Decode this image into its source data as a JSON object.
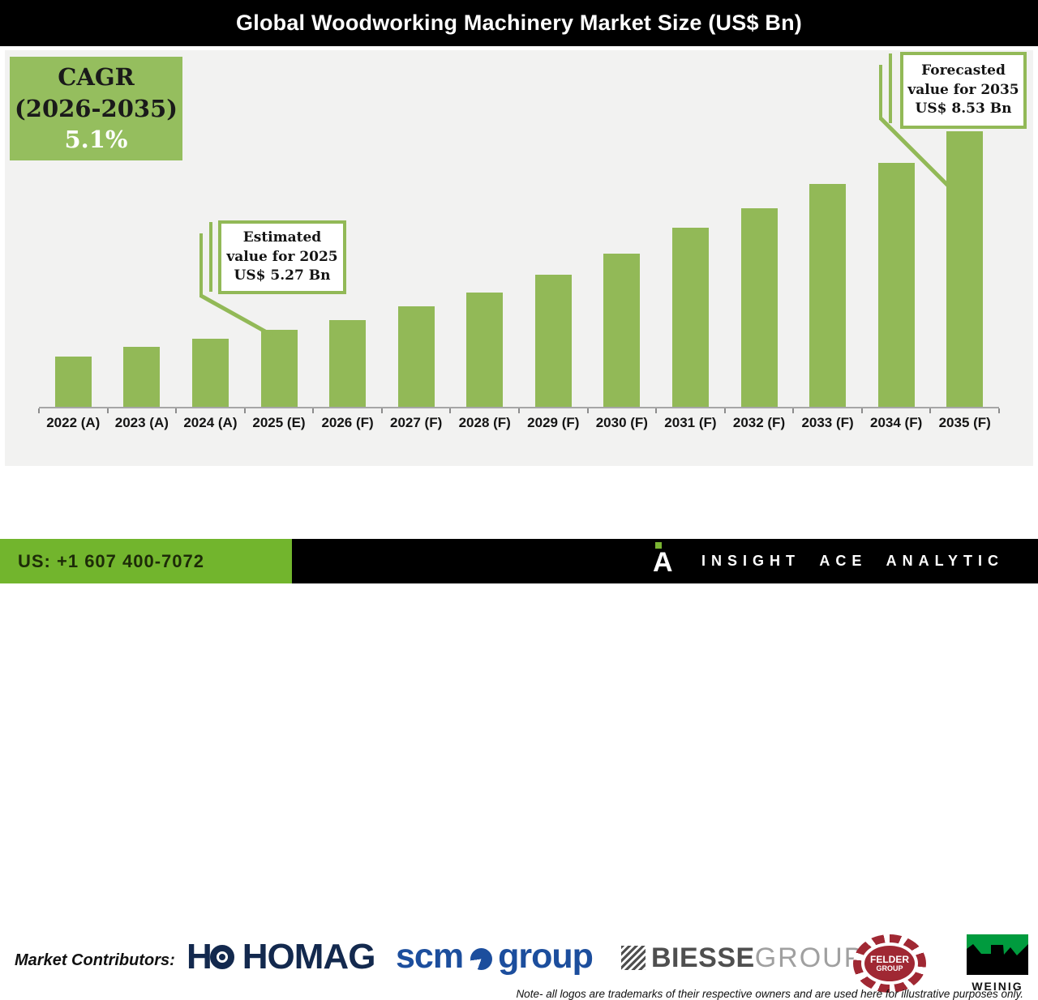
{
  "title_bar": {
    "title": "Global Woodworking Machinery Market Size (US$ Bn)"
  },
  "cagr_box": {
    "label": "CAGR",
    "range": "(2026-2035)",
    "rate": "5.1%"
  },
  "callouts": {
    "estimated": {
      "line1": "Estimated",
      "line2": "value for 2025",
      "line3": "US$ 5.27 Bn"
    },
    "forecasted": {
      "line1": "Forecasted",
      "line2": "value for 2035",
      "line3": "US$ 8.53 Bn"
    }
  },
  "chart_data": {
    "type": "bar",
    "title": "Global Woodworking Machinery Market Size (US$ Bn)",
    "categories": [
      "2022 (A)",
      "2023 (A)",
      "2024 (A)",
      "2025 (E)",
      "2026 (F)",
      "2027 (F)",
      "2028 (F)",
      "2029 (F)",
      "2030 (F)",
      "2031 (F)",
      "2032 (F)",
      "2033 (F)",
      "2034 (F)",
      "2035 (F)"
    ],
    "values": [
      4.82,
      4.99,
      5.12,
      5.27,
      5.43,
      5.65,
      5.88,
      6.17,
      6.52,
      6.94,
      7.27,
      7.67,
      8.01,
      8.53
    ],
    "xlabel": "",
    "ylabel": "US$ Bn",
    "ylim": [
      4.0,
      8.53
    ],
    "y_axis_hidden": true,
    "grid": false,
    "legend": false,
    "bar_color": "#92b957",
    "cagr": "5.1% (2026-2035)",
    "annotations": [
      {
        "target": "2025 (E)",
        "text": "Estimated value for 2025 US$ 5.27 Bn"
      },
      {
        "target": "2035 (F)",
        "text": "Forecasted value for 2035 US$ 8.53 Bn"
      }
    ]
  },
  "contributors": {
    "label": "Market Contributors:",
    "logos": [
      {
        "name": "HOMAG",
        "word": "HOMAG"
      },
      {
        "name": "SCM Group",
        "word1": "scm",
        "word2": "group"
      },
      {
        "name": "Biesse Group",
        "word1": "BIESSE",
        "word2": "GROUP"
      },
      {
        "name": "Felder Group",
        "word1": "FELDER",
        "word2": "GROUP"
      },
      {
        "name": "Weinig",
        "word": "WEINIG"
      }
    ],
    "note": "Note- all logos are trademarks of their respective owners and are used here for illustrative purposes only."
  },
  "footer": {
    "phone": "US: +1 607 400-7072",
    "brand": "INSIGHT ACE ANALYTIC"
  },
  "colors": {
    "bar_green": "#92b957",
    "cagr_green": "#95be5e",
    "bright_green": "#72b52d",
    "panel_gray": "#f2f2f1",
    "homag_navy": "#13294e",
    "scm_blue": "#1c4e9d",
    "biesse_dark": "#4f4f4f",
    "biesse_light": "#a0a0a0",
    "felder_red": "#a02833",
    "weinig_green": "#009b3e"
  }
}
